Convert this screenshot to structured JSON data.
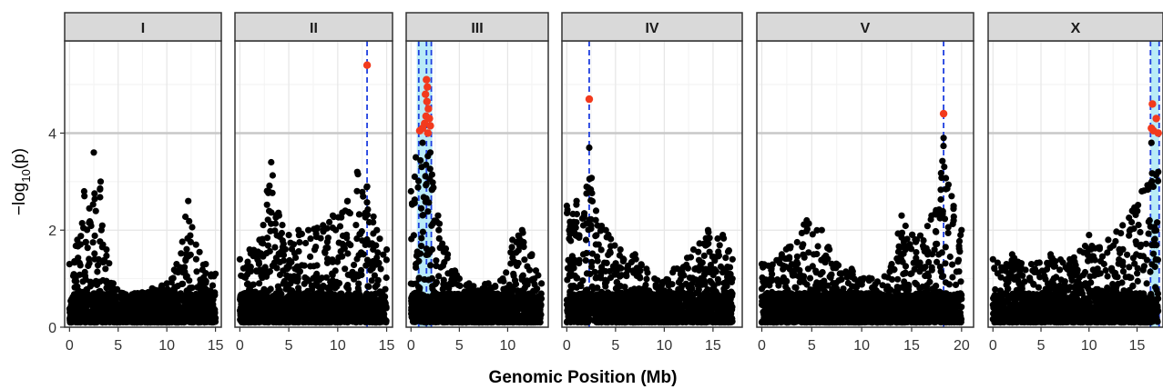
{
  "chart_data": {
    "type": "scatter",
    "facets": [
      "I",
      "II",
      "III",
      "IV",
      "V",
      "X"
    ],
    "xlabel": "Genomic Position (Mb)",
    "ylabel": "-log10(p)",
    "ylabel_parts": {
      "prefix": "−log",
      "sub": "10",
      "suffix": "(p)"
    },
    "ylim": [
      0,
      5.9
    ],
    "yticks": [
      0,
      2,
      4
    ],
    "threshold": 4.0,
    "grid": true,
    "colors": {
      "points": "#000000",
      "significant": "#f23a1d",
      "qtl_line": "#1f3fe0",
      "qtl_interval": "#a8e6f5",
      "threshold": "#c8c8c8",
      "strip": "#d9d9d9"
    },
    "panels": [
      {
        "name": "I",
        "xlim": [
          -0.5,
          15.6
        ],
        "xticks": [
          0,
          5,
          10,
          15
        ],
        "qtl_peaks": [],
        "qtl_intervals": [],
        "significant_points": [],
        "profile": [
          [
            0,
            1.3
          ],
          [
            0.8,
            1.8
          ],
          [
            1.5,
            2.8
          ],
          [
            2.5,
            3.6
          ],
          [
            3.2,
            3.0
          ],
          [
            3.8,
            1.6
          ],
          [
            4.5,
            0.9
          ],
          [
            5.5,
            0.7
          ],
          [
            7,
            0.7
          ],
          [
            8.5,
            0.8
          ],
          [
            10,
            0.9
          ],
          [
            11,
            1.3
          ],
          [
            12.2,
            2.6
          ],
          [
            13,
            1.7
          ],
          [
            14,
            1.3
          ],
          [
            15,
            1.1
          ]
        ]
      },
      {
        "name": "II",
        "xlim": [
          -0.5,
          15.6
        ],
        "xticks": [
          0,
          5,
          10,
          15
        ],
        "qtl_peaks": [
          13.0
        ],
        "qtl_intervals": [],
        "significant_points": [
          [
            13.0,
            5.4
          ]
        ],
        "profile": [
          [
            0,
            1.4
          ],
          [
            1,
            1.6
          ],
          [
            2,
            1.8
          ],
          [
            3.2,
            3.4
          ],
          [
            4,
            2.3
          ],
          [
            5,
            1.9
          ],
          [
            6,
            2.0
          ],
          [
            7,
            2.0
          ],
          [
            8.5,
            2.1
          ],
          [
            9.5,
            2.3
          ],
          [
            11,
            2.6
          ],
          [
            12,
            3.2
          ],
          [
            13,
            2.9
          ],
          [
            14,
            2.0
          ],
          [
            15,
            1.6
          ]
        ]
      },
      {
        "name": "III",
        "xlim": [
          -0.5,
          14.2
        ],
        "xticks": [
          0,
          5,
          10
        ],
        "qtl_peaks": [
          0.8,
          1.6,
          2.1
        ],
        "qtl_intervals": [
          [
            0.6,
            2.2
          ]
        ],
        "significant_points": [
          [
            1.6,
            5.1
          ],
          [
            1.7,
            4.95
          ],
          [
            1.5,
            4.8
          ],
          [
            1.65,
            4.65
          ],
          [
            1.8,
            4.5
          ],
          [
            1.55,
            4.35
          ],
          [
            1.9,
            4.3
          ],
          [
            1.4,
            4.2
          ],
          [
            2.0,
            4.15
          ],
          [
            0.9,
            4.05
          ],
          [
            1.2,
            4.1
          ],
          [
            1.75,
            4.0
          ]
        ],
        "profile": [
          [
            0,
            2.8
          ],
          [
            0.5,
            3.5
          ],
          [
            1.2,
            3.8
          ],
          [
            2,
            3.6
          ],
          [
            2.8,
            2.3
          ],
          [
            3.8,
            1.5
          ],
          [
            5,
            1.0
          ],
          [
            6,
            0.9
          ],
          [
            8,
            0.9
          ],
          [
            9.5,
            1.0
          ],
          [
            10.5,
            1.8
          ],
          [
            11.5,
            2.0
          ],
          [
            12.5,
            1.5
          ],
          [
            13.5,
            0.9
          ]
        ]
      },
      {
        "name": "IV",
        "xlim": [
          -0.5,
          18.0
        ],
        "xticks": [
          0,
          5,
          10,
          15
        ],
        "qtl_peaks": [
          2.3
        ],
        "qtl_intervals": [],
        "significant_points": [
          [
            2.3,
            4.7
          ]
        ],
        "profile": [
          [
            0,
            2.5
          ],
          [
            1,
            2.6
          ],
          [
            2.3,
            3.7
          ],
          [
            3,
            2.4
          ],
          [
            4,
            2.0
          ],
          [
            5.5,
            1.6
          ],
          [
            7,
            1.5
          ],
          [
            9,
            1.0
          ],
          [
            11,
            1.2
          ],
          [
            13,
            1.6
          ],
          [
            14.5,
            2.0
          ],
          [
            16,
            1.9
          ],
          [
            17,
            1.4
          ]
        ]
      },
      {
        "name": "V",
        "xlim": [
          -0.5,
          21.2
        ],
        "xticks": [
          0,
          5,
          10,
          15,
          20
        ],
        "qtl_peaks": [
          18.2
        ],
        "qtl_intervals": [],
        "significant_points": [
          [
            18.2,
            4.4
          ]
        ],
        "profile": [
          [
            0,
            1.3
          ],
          [
            2,
            1.5
          ],
          [
            4.5,
            2.2
          ],
          [
            6,
            2.0
          ],
          [
            7.5,
            1.3
          ],
          [
            9,
            1.2
          ],
          [
            11,
            1.0
          ],
          [
            13,
            1.3
          ],
          [
            14,
            2.3
          ],
          [
            15.5,
            1.8
          ],
          [
            17,
            2.3
          ],
          [
            18.2,
            3.9
          ],
          [
            19,
            2.7
          ],
          [
            20,
            2.0
          ]
        ]
      },
      {
        "name": "X",
        "xlim": [
          -0.5,
          17.7
        ],
        "xticks": [
          0,
          5,
          10,
          15
        ],
        "qtl_peaks": [
          16.4,
          17.3
        ],
        "qtl_intervals": [
          [
            16.4,
            17.3
          ]
        ],
        "significant_points": [
          [
            16.6,
            4.6
          ],
          [
            17.0,
            4.3
          ],
          [
            16.7,
            4.05
          ],
          [
            17.2,
            4.0
          ],
          [
            16.5,
            4.1
          ]
        ],
        "profile": [
          [
            0,
            1.4
          ],
          [
            2,
            1.5
          ],
          [
            4,
            1.3
          ],
          [
            6,
            1.5
          ],
          [
            8,
            1.4
          ],
          [
            10,
            1.9
          ],
          [
            12,
            1.8
          ],
          [
            13.5,
            2.1
          ],
          [
            14.5,
            2.4
          ],
          [
            15.5,
            2.8
          ],
          [
            16.5,
            3.8
          ],
          [
            17.2,
            3.2
          ]
        ]
      }
    ]
  }
}
